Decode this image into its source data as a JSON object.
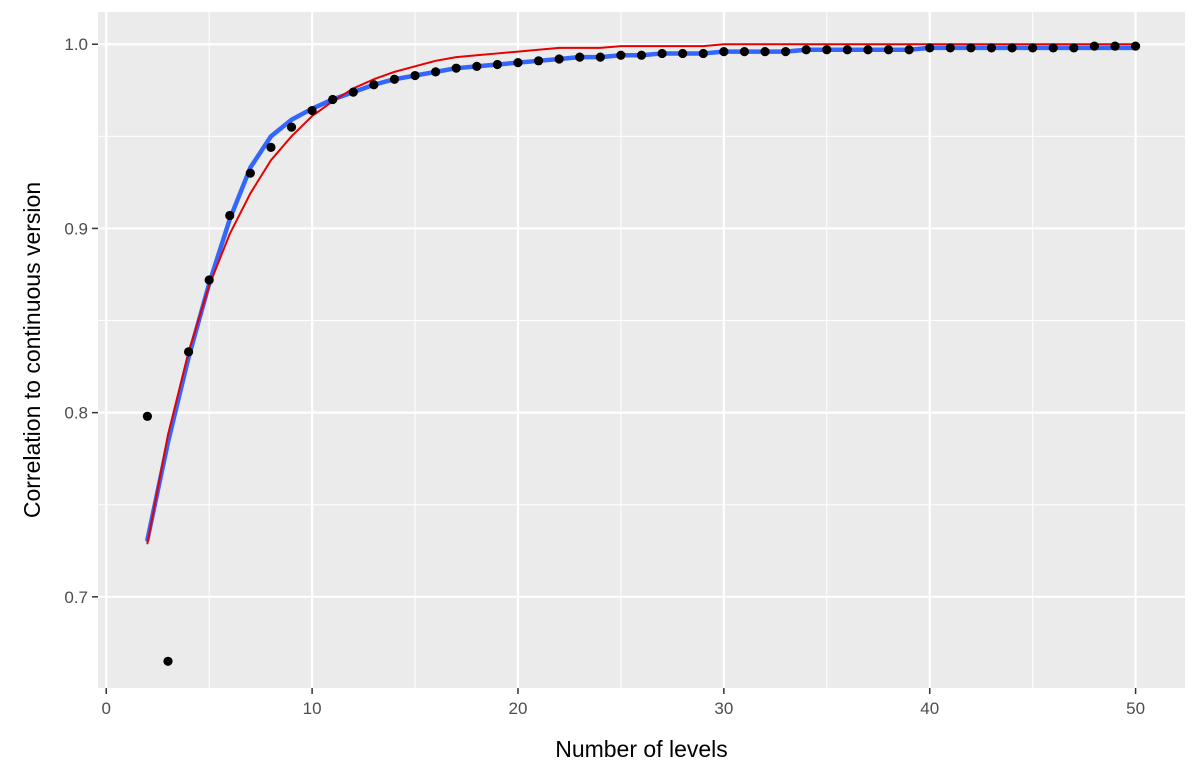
{
  "chart_data": {
    "type": "scatter",
    "title": "",
    "xlabel": "Number of levels",
    "ylabel": "Correlation to continuous version",
    "xlim": [
      -0.4,
      52.4
    ],
    "ylim": [
      0.6505,
      1.0175
    ],
    "x_ticks": [
      0,
      10,
      20,
      30,
      40,
      50
    ],
    "x_tick_labels": [
      "0",
      "10",
      "20",
      "30",
      "40",
      "50"
    ],
    "y_ticks": [
      0.7,
      0.8,
      0.9,
      1.0
    ],
    "y_tick_labels": [
      "0.7",
      "0.8",
      "0.9",
      "1.0"
    ],
    "grid": true,
    "legend": "none",
    "colors": {
      "panel": "#ebebeb",
      "grid": "#ffffff",
      "points": "#000000",
      "smooth": "#3366ff",
      "fit": "#e60000",
      "tick_text": "#4d4d4d",
      "axis_title": "#000000"
    },
    "series": [
      {
        "kind": "points",
        "x": [
          2,
          3,
          4,
          5,
          6,
          7,
          8,
          9,
          10,
          11,
          12,
          13,
          14,
          15,
          16,
          17,
          18,
          19,
          20,
          21,
          22,
          23,
          24,
          25,
          26,
          27,
          28,
          29,
          30,
          31,
          32,
          33,
          34,
          35,
          36,
          37,
          38,
          39,
          40,
          41,
          42,
          43,
          44,
          45,
          46,
          47,
          48,
          49,
          50
        ],
        "y": [
          0.798,
          0.665,
          0.833,
          0.872,
          0.907,
          0.93,
          0.944,
          0.955,
          0.964,
          0.97,
          0.974,
          0.978,
          0.981,
          0.983,
          0.985,
          0.987,
          0.988,
          0.989,
          0.99,
          0.991,
          0.992,
          0.993,
          0.993,
          0.994,
          0.994,
          0.995,
          0.995,
          0.995,
          0.996,
          0.996,
          0.996,
          0.996,
          0.997,
          0.997,
          0.997,
          0.997,
          0.997,
          0.997,
          0.998,
          0.998,
          0.998,
          0.998,
          0.998,
          0.998,
          0.998,
          0.998,
          0.999,
          0.999,
          0.999
        ]
      },
      {
        "kind": "line",
        "role": "smooth",
        "x": [
          2,
          3,
          4,
          5,
          6,
          7,
          8,
          9,
          10,
          11,
          12,
          13,
          14,
          15,
          16,
          17,
          18,
          19,
          20,
          21,
          22,
          23,
          24,
          25,
          26,
          27,
          28,
          29,
          30,
          31,
          32,
          33,
          34,
          35,
          36,
          37,
          38,
          39,
          40,
          41,
          42,
          43,
          44,
          45,
          46,
          47,
          48,
          49,
          50
        ],
        "y": [
          0.731,
          0.784,
          0.83,
          0.87,
          0.905,
          0.933,
          0.95,
          0.959,
          0.965,
          0.97,
          0.974,
          0.978,
          0.981,
          0.983,
          0.985,
          0.987,
          0.988,
          0.989,
          0.99,
          0.991,
          0.992,
          0.993,
          0.993,
          0.994,
          0.994,
          0.995,
          0.995,
          0.995,
          0.996,
          0.996,
          0.996,
          0.996,
          0.997,
          0.997,
          0.997,
          0.997,
          0.997,
          0.997,
          0.998,
          0.998,
          0.998,
          0.998,
          0.998,
          0.998,
          0.998,
          0.998,
          0.998,
          0.998,
          0.998
        ]
      },
      {
        "kind": "line",
        "role": "fit",
        "x": [
          2,
          3,
          4,
          5,
          6,
          7,
          8,
          9,
          10,
          11,
          12,
          13,
          14,
          15,
          16,
          17,
          18,
          19,
          20,
          21,
          22,
          23,
          24,
          25,
          26,
          27,
          28,
          29,
          30,
          31,
          32,
          33,
          34,
          35,
          36,
          37,
          38,
          39,
          40,
          41,
          42,
          43,
          44,
          45,
          46,
          47,
          48,
          49,
          50
        ],
        "y": [
          0.729,
          0.788,
          0.833,
          0.869,
          0.897,
          0.919,
          0.937,
          0.95,
          0.961,
          0.969,
          0.976,
          0.981,
          0.985,
          0.988,
          0.991,
          0.993,
          0.994,
          0.995,
          0.996,
          0.997,
          0.998,
          0.998,
          0.998,
          0.999,
          0.999,
          0.999,
          0.999,
          0.999,
          1.0,
          1.0,
          1.0,
          1.0,
          1.0,
          1.0,
          1.0,
          1.0,
          1.0,
          1.0,
          1.0,
          1.0,
          1.0,
          1.0,
          1.0,
          1.0,
          1.0,
          1.0,
          1.0,
          1.0,
          1.0
        ]
      }
    ]
  }
}
